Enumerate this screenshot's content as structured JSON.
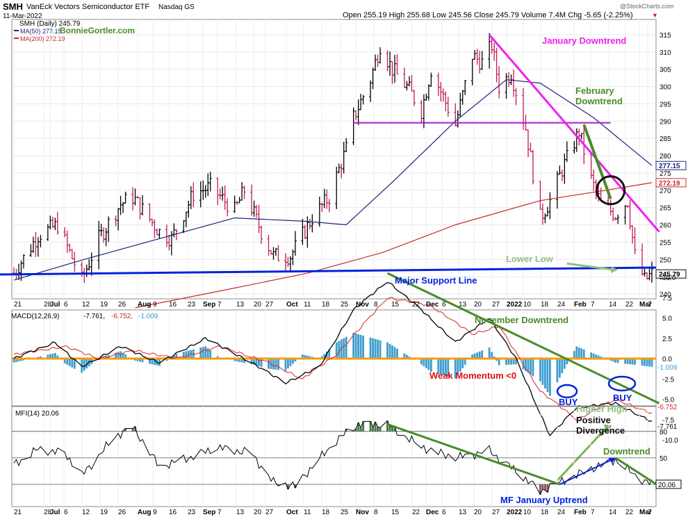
{
  "header": {
    "symbol": "SMH",
    "name": "VanEck Vectors Semiconductor ETF",
    "exchange": "Nasdaq GS",
    "date": "11-Mar-2022",
    "quote": "Open 255.19  High 255.68  Low 245.56  Close 245.79  Volume 7.4M  Chg -5.65 (-2.25%)",
    "chg_arrow": "▼",
    "watermark": "@StockCharts.com"
  },
  "legend": {
    "price": "SMH (Daily) 245.79",
    "ma50": "MA(50) 277.15",
    "ma200": "MA(200) 272.19",
    "brand": "BonnieGortler.com",
    "macd": "MACD(12,26,9)",
    "macd_vals": [
      "-7.761,",
      "-6.752,",
      "-1.009"
    ],
    "mfi": "MFI(14) 20.06"
  },
  "colors": {
    "price_up": "#000000",
    "price_down": "#c2185b",
    "ma50": "#1a237e",
    "ma200": "#c62828",
    "support": "#0022dd",
    "magenta": "#ee22ee",
    "green": "#4a8a2a",
    "orange": "#f39c12",
    "hist": "#3d9dd0"
  },
  "annotations": {
    "jan_downtrend": "January Downtrend",
    "feb_downtrend_1": "February",
    "feb_downtrend_2": "Downtrend",
    "lower_low": "Lower Low",
    "major_support": "Major Support Line",
    "nov_downtrend": "November Downtrend",
    "weak_momentum": "Weak Momentum <0",
    "buy": "BUY",
    "higher_high": "Higher High",
    "positive_1": "Positive",
    "positive_2": "Divergence",
    "mfi_downtrend": "Downtrend",
    "mf_jan_uptrend": "MF January Uptrend"
  },
  "chart_data": [
    {
      "type": "ohlc",
      "panel": "price",
      "y_ticks": [
        240,
        245,
        250,
        255,
        260,
        265,
        270,
        275,
        280,
        285,
        290,
        295,
        300,
        305,
        310,
        315
      ],
      "ylim": [
        238.5,
        318
      ],
      "x_tick_labels": [
        "21",
        "28",
        "Jul",
        "6",
        "12",
        "19",
        "26",
        "Aug",
        "9",
        "16",
        "23",
        "Sep",
        "7",
        "13",
        "20",
        "27",
        "Oct",
        "11",
        "18",
        "25",
        "Nov",
        "8",
        "15",
        "22",
        "Dec",
        "6",
        "13",
        "20",
        "27",
        "2022",
        "10",
        "18",
        "24",
        "Feb",
        "7",
        "14",
        "22",
        "Mar",
        "7"
      ],
      "price_labels": {
        "ma50": "277.15",
        "ma200": "272.19",
        "close": "245.79"
      },
      "close_path": [
        {
          "d": "2021-06-21",
          "c": 246
        },
        {
          "d": "2021-07-01",
          "c": 257
        },
        {
          "d": "2021-07-09",
          "c": 260
        },
        {
          "d": "2021-07-19",
          "c": 244
        },
        {
          "d": "2021-07-26",
          "c": 256
        },
        {
          "d": "2021-08-04",
          "c": 266
        },
        {
          "d": "2021-08-09",
          "c": 268
        },
        {
          "d": "2021-08-20",
          "c": 258
        },
        {
          "d": "2021-08-25",
          "c": 256
        },
        {
          "d": "2021-09-03",
          "c": 269
        },
        {
          "d": "2021-09-10",
          "c": 271
        },
        {
          "d": "2021-09-20",
          "c": 264
        },
        {
          "d": "2021-09-24",
          "c": 270
        },
        {
          "d": "2021-10-01",
          "c": 258
        },
        {
          "d": "2021-10-06",
          "c": 251
        },
        {
          "d": "2021-10-13",
          "c": 251
        },
        {
          "d": "2021-10-22",
          "c": 262
        },
        {
          "d": "2021-10-29",
          "c": 268
        },
        {
          "d": "2021-11-05",
          "c": 282
        },
        {
          "d": "2021-11-08",
          "c": 291
        },
        {
          "d": "2021-11-15",
          "c": 302
        },
        {
          "d": "2021-11-19",
          "c": 312
        },
        {
          "d": "2021-11-24",
          "c": 305
        },
        {
          "d": "2021-12-01",
          "c": 299
        },
        {
          "d": "2021-12-06",
          "c": 293
        },
        {
          "d": "2021-12-10",
          "c": 305
        },
        {
          "d": "2021-12-20",
          "c": 289
        },
        {
          "d": "2021-12-27",
          "c": 309
        },
        {
          "d": "2021-12-31",
          "c": 307
        },
        {
          "d": "2022-01-04",
          "c": 312
        },
        {
          "d": "2022-01-07",
          "c": 300
        },
        {
          "d": "2022-01-12",
          "c": 304
        },
        {
          "d": "2022-01-18",
          "c": 288
        },
        {
          "d": "2022-01-24",
          "c": 262
        },
        {
          "d": "2022-01-28",
          "c": 267
        },
        {
          "d": "2022-02-02",
          "c": 276
        },
        {
          "d": "2022-02-09",
          "c": 287
        },
        {
          "d": "2022-02-14",
          "c": 273
        },
        {
          "d": "2022-02-18",
          "c": 266
        },
        {
          "d": "2022-02-24",
          "c": 263
        },
        {
          "d": "2022-03-01",
          "c": 267
        },
        {
          "d": "2022-03-04",
          "c": 251
        },
        {
          "d": "2022-03-08",
          "c": 244
        },
        {
          "d": "2022-03-11",
          "c": 245.79
        }
      ],
      "ma50_path": [
        {
          "d": "2021-06-21",
          "c": 244
        },
        {
          "d": "2021-07-20",
          "c": 250
        },
        {
          "d": "2021-08-20",
          "c": 256
        },
        {
          "d": "2021-09-20",
          "c": 262
        },
        {
          "d": "2021-10-20",
          "c": 261
        },
        {
          "d": "2021-11-05",
          "c": 260
        },
        {
          "d": "2021-11-25",
          "c": 273
        },
        {
          "d": "2021-12-20",
          "c": 290
        },
        {
          "d": "2022-01-10",
          "c": 302
        },
        {
          "d": "2022-01-24",
          "c": 301
        },
        {
          "d": "2022-02-15",
          "c": 291
        },
        {
          "d": "2022-03-11",
          "c": 277.15
        }
      ],
      "ma200_path": [
        {
          "d": "2021-08-10",
          "c": 236
        },
        {
          "d": "2021-09-15",
          "c": 241
        },
        {
          "d": "2021-10-20",
          "c": 246
        },
        {
          "d": "2021-11-20",
          "c": 252
        },
        {
          "d": "2021-12-20",
          "c": 260
        },
        {
          "d": "2022-01-24",
          "c": 267
        },
        {
          "d": "2022-02-20",
          "c": 270
        },
        {
          "d": "2022-03-11",
          "c": 272.19
        }
      ],
      "support_line": [
        {
          "d": "2021-06-14",
          "c": 244.5
        },
        {
          "d": "2022-03-14",
          "c": 246
        }
      ],
      "resistance_line": [
        {
          "d": "2021-11-08",
          "c": 289.5
        },
        {
          "d": "2022-02-22",
          "c": 289.5
        }
      ],
      "jan_downtrend_line": [
        {
          "d": "2022-01-03",
          "c": 315
        },
        {
          "d": "2022-03-14",
          "c": 258
        }
      ],
      "feb_downtrend_line": [
        {
          "d": "2022-02-11",
          "c": 289
        },
        {
          "d": "2022-02-22",
          "c": 267.5
        }
      ],
      "lower_low_arrow": [
        {
          "d": "2022-02-04",
          "c": 248.8
        },
        {
          "d": "2022-02-25",
          "c": 247
        }
      ],
      "circle_center": {
        "d": "2022-02-22",
        "c": 270
      }
    },
    {
      "type": "line",
      "panel": "macd",
      "y_ticks": [
        -10.0,
        -7.5,
        -5.0,
        -2.5,
        0.0,
        2.5,
        5.0,
        7.5,
        10.0
      ],
      "ylim": [
        -12,
        11
      ],
      "price_labels": {
        "signal": "-6.752",
        "macd": "-7.761",
        "hist": "-1.009"
      },
      "macd": [
        {
          "d": "2021-06-21",
          "v": 0.0
        },
        {
          "d": "2021-07-08",
          "v": 2.0
        },
        {
          "d": "2021-07-19",
          "v": -1.0
        },
        {
          "d": "2021-08-04",
          "v": 1.5
        },
        {
          "d": "2021-08-20",
          "v": -0.5
        },
        {
          "d": "2021-09-08",
          "v": 2.5
        },
        {
          "d": "2021-09-27",
          "v": -0.5
        },
        {
          "d": "2021-10-11",
          "v": -3.0
        },
        {
          "d": "2021-10-25",
          "v": -1.0
        },
        {
          "d": "2021-11-08",
          "v": 6.0
        },
        {
          "d": "2021-11-22",
          "v": 9.5
        },
        {
          "d": "2021-12-06",
          "v": 6.0
        },
        {
          "d": "2021-12-20",
          "v": 2.0
        },
        {
          "d": "2022-01-03",
          "v": 5.0
        },
        {
          "d": "2022-01-14",
          "v": 0.0
        },
        {
          "d": "2022-01-28",
          "v": -9.5
        },
        {
          "d": "2022-02-08",
          "v": -6.0
        },
        {
          "d": "2022-02-24",
          "v": -5.5
        },
        {
          "d": "2022-03-11",
          "v": -7.761
        }
      ],
      "signal": [
        {
          "d": "2021-06-21",
          "v": 0.5
        },
        {
          "d": "2021-07-12",
          "v": 1.5
        },
        {
          "d": "2021-07-26",
          "v": 0.0
        },
        {
          "d": "2021-08-10",
          "v": 1.0
        },
        {
          "d": "2021-08-27",
          "v": 0.0
        },
        {
          "d": "2021-09-14",
          "v": 1.5
        },
        {
          "d": "2021-10-04",
          "v": -0.5
        },
        {
          "d": "2021-10-18",
          "v": -2.5
        },
        {
          "d": "2021-11-01",
          "v": 0.5
        },
        {
          "d": "2021-11-22",
          "v": 7.5
        },
        {
          "d": "2021-12-10",
          "v": 6.5
        },
        {
          "d": "2021-12-27",
          "v": 3.0
        },
        {
          "d": "2022-01-07",
          "v": 4.0
        },
        {
          "d": "2022-01-24",
          "v": -4.0
        },
        {
          "d": "2022-02-08",
          "v": -7.5
        },
        {
          "d": "2022-02-24",
          "v": -5.0
        },
        {
          "d": "2022-03-11",
          "v": -6.752
        }
      ],
      "nov_downtrend_line": [
        {
          "d": "2021-11-22",
          "v": 10.5
        },
        {
          "d": "2022-03-14",
          "v": -5.5
        }
      ],
      "higher_high_arrow": [
        {
          "d": "2022-01-31",
          "v": -15
        },
        {
          "d": "2022-02-22",
          "v": -8.5
        }
      ]
    },
    {
      "type": "line",
      "panel": "mfi",
      "y_ticks": [
        20,
        50,
        80
      ],
      "ylim": [
        0,
        100
      ],
      "price_labels": {
        "mfi": "20.06"
      },
      "mfi": [
        {
          "d": "2021-06-21",
          "v": 42
        },
        {
          "d": "2021-07-01",
          "v": 60
        },
        {
          "d": "2021-07-12",
          "v": 55
        },
        {
          "d": "2021-07-19",
          "v": 30
        },
        {
          "d": "2021-08-02",
          "v": 75
        },
        {
          "d": "2021-08-09",
          "v": 85
        },
        {
          "d": "2021-08-20",
          "v": 40
        },
        {
          "d": "2021-09-01",
          "v": 50
        },
        {
          "d": "2021-09-13",
          "v": 62
        },
        {
          "d": "2021-09-27",
          "v": 55
        },
        {
          "d": "2021-10-06",
          "v": 22
        },
        {
          "d": "2021-10-15",
          "v": 18
        },
        {
          "d": "2021-10-22",
          "v": 40
        },
        {
          "d": "2021-11-01",
          "v": 70
        },
        {
          "d": "2021-11-10",
          "v": 88
        },
        {
          "d": "2021-11-22",
          "v": 88
        },
        {
          "d": "2021-12-06",
          "v": 62
        },
        {
          "d": "2021-12-20",
          "v": 50
        },
        {
          "d": "2022-01-03",
          "v": 58
        },
        {
          "d": "2022-01-14",
          "v": 35
        },
        {
          "d": "2022-01-24",
          "v": 12
        },
        {
          "d": "2022-02-01",
          "v": 22
        },
        {
          "d": "2022-02-10",
          "v": 33
        },
        {
          "d": "2022-02-24",
          "v": 48
        },
        {
          "d": "2022-03-04",
          "v": 30
        },
        {
          "d": "2022-03-11",
          "v": 20.06
        }
      ],
      "mfi_downtrend_line": [
        {
          "d": "2021-11-22",
          "v": 88
        },
        {
          "d": "2022-02-01",
          "v": 20
        }
      ],
      "mfi_short_downtrend_line": [
        {
          "d": "2022-02-24",
          "v": 50
        },
        {
          "d": "2022-03-14",
          "v": 18
        }
      ],
      "mf_uptrend_line": [
        {
          "d": "2022-02-01",
          "v": 20
        },
        {
          "d": "2022-02-24",
          "v": 50
        }
      ]
    }
  ]
}
